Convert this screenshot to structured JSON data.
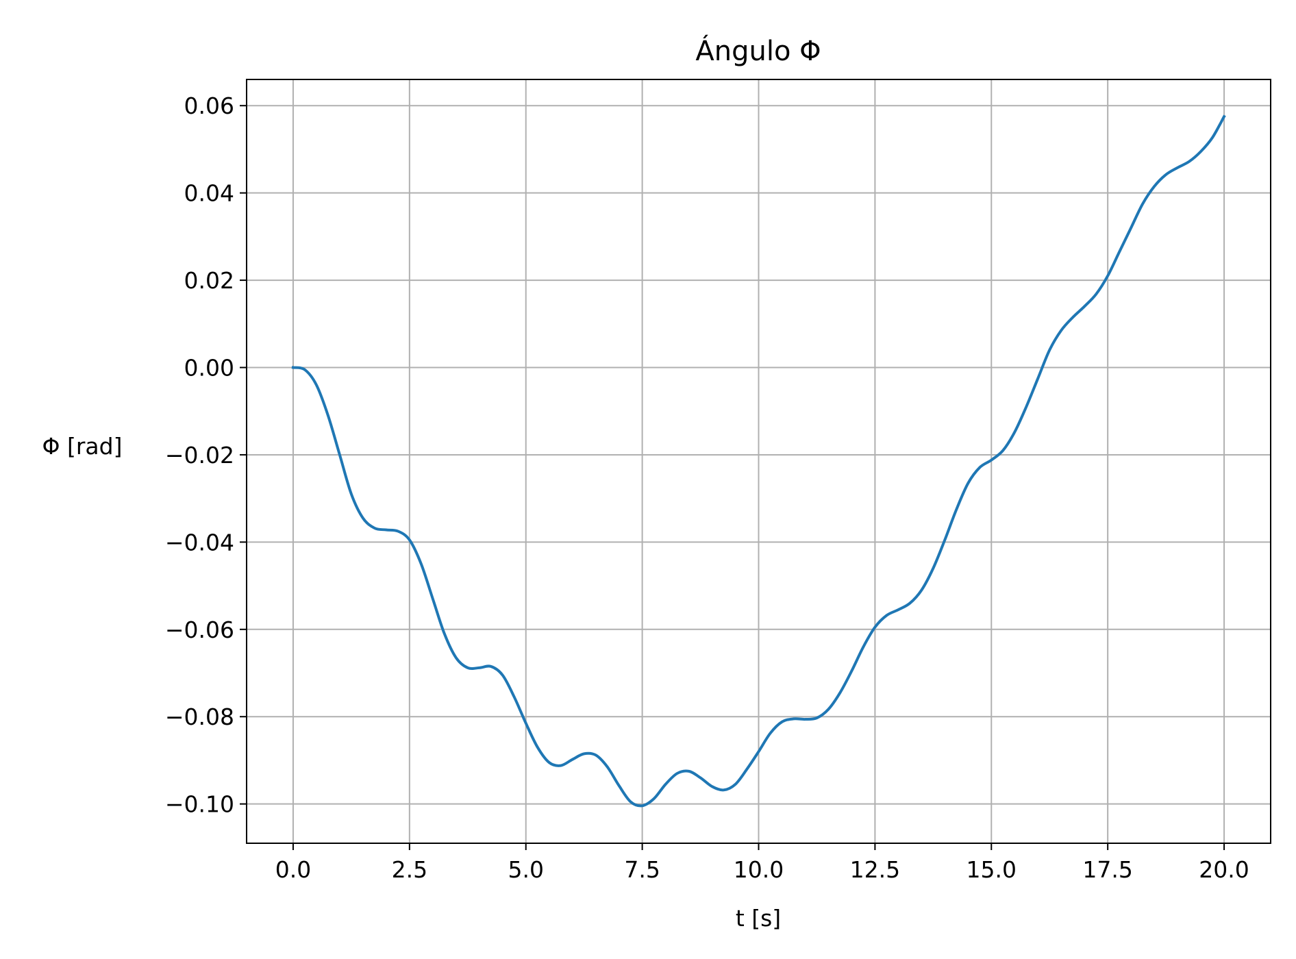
{
  "chart_data": {
    "type": "line",
    "title": "Ángulo Φ",
    "xlabel": "t [s]",
    "ylabel": "Φ [rad]",
    "xlim": [
      -1.0,
      21.0
    ],
    "ylim": [
      -0.109,
      0.066
    ],
    "xticks": [
      0.0,
      2.5,
      5.0,
      7.5,
      10.0,
      12.5,
      15.0,
      17.5,
      20.0
    ],
    "xtick_labels": [
      "0.0",
      "2.5",
      "5.0",
      "7.5",
      "10.0",
      "12.5",
      "15.0",
      "17.5",
      "20.0"
    ],
    "yticks": [
      0.06,
      0.04,
      0.02,
      0.0,
      -0.02,
      -0.04,
      -0.06,
      -0.08,
      -0.1
    ],
    "ytick_labels": [
      "0.06",
      "0.04",
      "0.02",
      "0.00",
      "−0.02",
      "−0.04",
      "−0.06",
      "−0.08",
      "−0.10"
    ],
    "grid": true,
    "series": [
      {
        "color": "#1f77b4",
        "x": [
          0.0,
          0.25,
          0.5,
          0.75,
          1.0,
          1.25,
          1.5,
          1.75,
          2.0,
          2.25,
          2.5,
          2.75,
          3.0,
          3.25,
          3.5,
          3.75,
          4.0,
          4.25,
          4.5,
          4.75,
          5.0,
          5.25,
          5.5,
          5.75,
          6.0,
          6.25,
          6.5,
          6.75,
          7.0,
          7.25,
          7.5,
          7.75,
          8.0,
          8.25,
          8.5,
          8.75,
          9.0,
          9.25,
          9.5,
          9.75,
          10.0,
          10.25,
          10.5,
          10.75,
          11.0,
          11.25,
          11.5,
          11.75,
          12.0,
          12.25,
          12.5,
          12.75,
          13.0,
          13.25,
          13.5,
          13.75,
          14.0,
          14.25,
          14.5,
          14.75,
          15.0,
          15.25,
          15.5,
          15.75,
          16.0,
          16.25,
          16.5,
          16.75,
          17.0,
          17.25,
          17.5,
          17.75,
          18.0,
          18.25,
          18.5,
          18.75,
          19.0,
          19.25,
          19.5,
          19.75,
          20.0
        ],
        "y": [
          0.0,
          -0.0005,
          -0.004,
          -0.011,
          -0.02,
          -0.029,
          -0.0345,
          -0.0368,
          -0.0372,
          -0.0375,
          -0.0395,
          -0.045,
          -0.053,
          -0.061,
          -0.0665,
          -0.0688,
          -0.0688,
          -0.0685,
          -0.0705,
          -0.0755,
          -0.0815,
          -0.087,
          -0.0905,
          -0.0912,
          -0.0898,
          -0.0885,
          -0.0888,
          -0.0915,
          -0.0958,
          -0.0995,
          -0.1004,
          -0.0988,
          -0.0955,
          -0.093,
          -0.0925,
          -0.094,
          -0.096,
          -0.0968,
          -0.0955,
          -0.092,
          -0.088,
          -0.0838,
          -0.0812,
          -0.0805,
          -0.0806,
          -0.0803,
          -0.0783,
          -0.0745,
          -0.0695,
          -0.064,
          -0.0595,
          -0.0568,
          -0.0555,
          -0.054,
          -0.051,
          -0.046,
          -0.0395,
          -0.0325,
          -0.0265,
          -0.0229,
          -0.0212,
          -0.019,
          -0.0148,
          -0.009,
          -0.0025,
          0.004,
          0.0085,
          0.0115,
          0.014,
          0.0168,
          0.021,
          0.0265,
          0.032,
          0.0375,
          0.0415,
          0.0442,
          0.0458,
          0.0472,
          0.0495,
          0.0527,
          0.0575
        ]
      }
    ]
  }
}
